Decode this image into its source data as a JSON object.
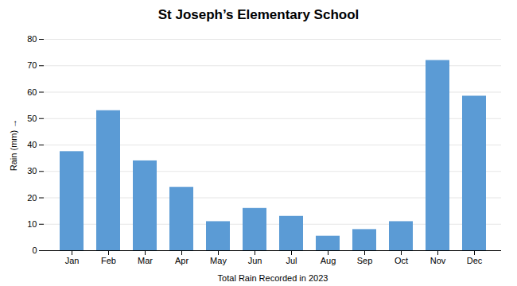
{
  "chart_data": {
    "type": "bar",
    "title": "St Joseph’s Elementary School",
    "xlabel": "Total Rain Recorded in 2023",
    "ylabel": "Rain (mm)",
    "categories": [
      "Jan",
      "Feb",
      "Mar",
      "Apr",
      "May",
      "Jun",
      "Jul",
      "Aug",
      "Sep",
      "Oct",
      "Nov",
      "Dec"
    ],
    "values": [
      37.5,
      53,
      34,
      24,
      11,
      16,
      13,
      5.5,
      8,
      11,
      72,
      58.5
    ],
    "color": "#5b9bd5",
    "ylim": [
      0,
      80
    ],
    "yticks": [
      0,
      10,
      20,
      30,
      40,
      50,
      60,
      70,
      80
    ],
    "grid": true
  }
}
